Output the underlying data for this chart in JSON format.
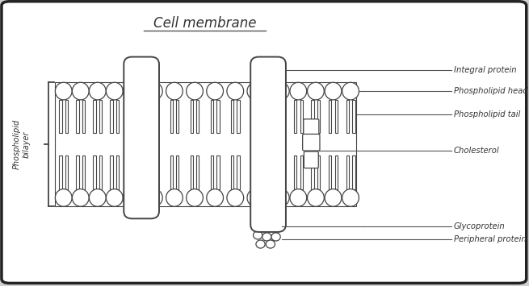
{
  "title": "Cell membrane",
  "bg_outer": "#d0d0d0",
  "bg_card": "#ffffff",
  "border_color": "#222222",
  "draw_color": "#444444",
  "label_color": "#333333",
  "labels": {
    "integral_protein": "Integral protein",
    "phospholipid_head": "Phospholipid head",
    "phospholipid_tail": "Phospholipid tail",
    "cholesterol": "Cholesterol",
    "glycoprotein": "Glycoprotein",
    "peripheral_protein": "Peripheral protein",
    "bilayer": "Phospholipid\nbilayer"
  },
  "figsize": [
    6.55,
    3.55
  ],
  "dpi": 100
}
